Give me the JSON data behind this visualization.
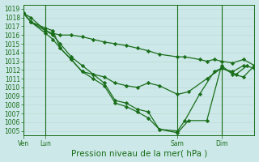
{
  "background_color": "#cce8e8",
  "grid_color": "#b8d8d0",
  "line_color": "#1a6e1a",
  "marker": "D",
  "marker_size": 2.2,
  "marker_lw": 0.5,
  "line_width": 0.9,
  "ylim": [
    1004.5,
    1019.5
  ],
  "yticks": [
    1005,
    1006,
    1007,
    1008,
    1009,
    1010,
    1011,
    1012,
    1013,
    1014,
    1015,
    1016,
    1017,
    1018,
    1019
  ],
  "xlabel": "Pression niveau de la mer( hPa )",
  "xlabel_fontsize": 7.5,
  "tick_fontsize": 5.5,
  "xtick_labels": [
    "Ven",
    "Lun",
    "Sam",
    "Dim"
  ],
  "xtick_positions": [
    0,
    12,
    84,
    108
  ],
  "vline_positions": [
    0,
    12,
    84,
    108
  ],
  "xlim": [
    0,
    126
  ],
  "series": [
    {
      "x": [
        0,
        4,
        12,
        16,
        20,
        26,
        32,
        38,
        44,
        50,
        56,
        62,
        68,
        74,
        84,
        88,
        96,
        100,
        104,
        108,
        114,
        120,
        126
      ],
      "y": [
        1018.5,
        1018.0,
        1016.5,
        1016.2,
        1016.0,
        1016.0,
        1015.8,
        1015.5,
        1015.2,
        1015.0,
        1014.8,
        1014.5,
        1014.2,
        1013.8,
        1013.5,
        1013.5,
        1013.2,
        1013.0,
        1013.2,
        1013.0,
        1012.8,
        1013.2,
        1012.5
      ]
    },
    {
      "x": [
        0,
        4,
        12,
        16,
        20,
        26,
        32,
        38,
        44,
        50,
        56,
        62,
        68,
        74,
        84,
        90,
        100,
        108,
        114,
        120,
        126
      ],
      "y": [
        1018.5,
        1017.5,
        1016.5,
        1016.0,
        1015.0,
        1013.5,
        1012.5,
        1011.5,
        1011.2,
        1010.5,
        1010.2,
        1010.0,
        1010.5,
        1010.2,
        1009.2,
        1009.5,
        1011.0,
        1012.2,
        1011.8,
        1012.5,
        1012.2
      ]
    },
    {
      "x": [
        0,
        4,
        12,
        16,
        20,
        26,
        32,
        38,
        44,
        50,
        56,
        62,
        68,
        74,
        84,
        88,
        96,
        104,
        108,
        116,
        122
      ],
      "y": [
        1018.5,
        1017.5,
        1016.2,
        1015.5,
        1014.5,
        1013.2,
        1011.8,
        1011.5,
        1010.5,
        1008.5,
        1008.2,
        1007.5,
        1007.2,
        1005.2,
        1005.0,
        1006.2,
        1009.2,
        1011.8,
        1012.2,
        1011.5,
        1012.5
      ]
    },
    {
      "x": [
        0,
        4,
        12,
        16,
        20,
        26,
        32,
        38,
        44,
        50,
        56,
        62,
        68,
        74,
        84,
        90,
        100,
        108,
        114,
        120,
        126
      ],
      "y": [
        1018.5,
        1017.5,
        1016.8,
        1016.5,
        1014.5,
        1013.2,
        1011.8,
        1011.0,
        1010.2,
        1008.2,
        1007.8,
        1007.2,
        1006.5,
        1005.2,
        1004.8,
        1006.2,
        1006.2,
        1012.5,
        1011.5,
        1011.2,
        1012.5
      ]
    }
  ]
}
